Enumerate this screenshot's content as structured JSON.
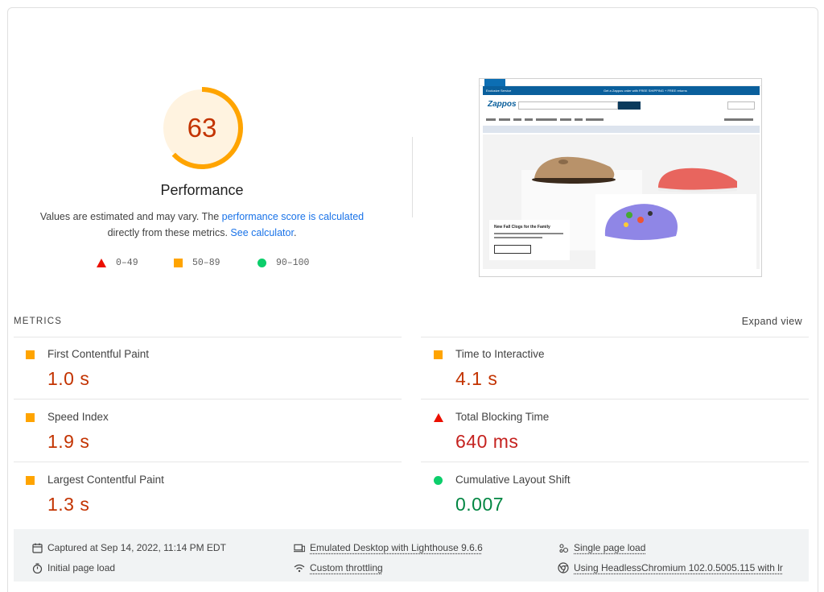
{
  "performance": {
    "score": 63,
    "title": "Performance",
    "desc_prefix": "Values are estimated and may vary. The ",
    "desc_link1": "performance score is calculated",
    "desc_middle": "directly from these metrics. ",
    "desc_link2": "See calculator",
    "desc_suffix": ".",
    "score_color": "#ffa400"
  },
  "legend": {
    "fail": "0–49",
    "average": "50–89",
    "pass": "90–100"
  },
  "colors": {
    "fail": "#eb0f00",
    "average": "#ffa400",
    "pass": "#0cce6b",
    "link": "#1a73e8"
  },
  "metrics": {
    "header": "METRICS",
    "expand": "Expand view",
    "items": [
      {
        "label": "First Contentful Paint",
        "value": "1.0 s",
        "rating": "average"
      },
      {
        "label": "Time to Interactive",
        "value": "4.1 s",
        "rating": "average"
      },
      {
        "label": "Speed Index",
        "value": "1.9 s",
        "rating": "average"
      },
      {
        "label": "Total Blocking Time",
        "value": "640 ms",
        "rating": "fail"
      },
      {
        "label": "Largest Contentful Paint",
        "value": "1.3 s",
        "rating": "average"
      },
      {
        "label": "Cumulative Layout Shift",
        "value": "0.007",
        "rating": "pass"
      }
    ]
  },
  "screenshot": {
    "logo": "Zappos",
    "hero_title": "New Fall Clogs for the Family"
  },
  "footer": {
    "captured": "Captured at Sep 14, 2022, 11:14 PM EDT",
    "initial": "Initial page load",
    "emulated": "Emulated Desktop with Lighthouse 9.6.6",
    "throttling": "Custom throttling",
    "single": "Single page load",
    "browser": "Using HeadlessChromium 102.0.5005.115 with lr",
    "icons": [
      "calendar-icon",
      "stopwatch-icon",
      "desktop-icon",
      "wifi-icon",
      "people-icon",
      "chrome-icon"
    ]
  }
}
